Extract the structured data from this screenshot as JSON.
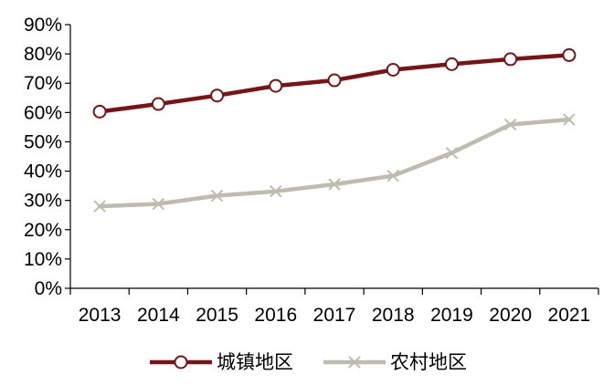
{
  "chart_data": {
    "type": "line",
    "title": "",
    "xlabel": "",
    "ylabel": "",
    "x": [
      "2013",
      "2014",
      "2015",
      "2016",
      "2017",
      "2018",
      "2019",
      "2020",
      "2021"
    ],
    "ylim": [
      0,
      90
    ],
    "yticks": [
      "0%",
      "10%",
      "20%",
      "30%",
      "40%",
      "50%",
      "60%",
      "70%",
      "80%",
      "90%"
    ],
    "grid": false,
    "legend_position": "bottom",
    "series": [
      {
        "name": "城镇地区",
        "marker": "circle",
        "color": "#7b1214",
        "values": [
          60.3,
          62.9,
          65.8,
          69.1,
          71.0,
          74.6,
          76.5,
          78.2,
          79.6
        ]
      },
      {
        "name": "农村地区",
        "marker": "x",
        "color": "#bebcaf",
        "values": [
          28.0,
          28.8,
          31.6,
          33.1,
          35.5,
          38.4,
          46.2,
          55.9,
          57.6
        ]
      }
    ]
  }
}
